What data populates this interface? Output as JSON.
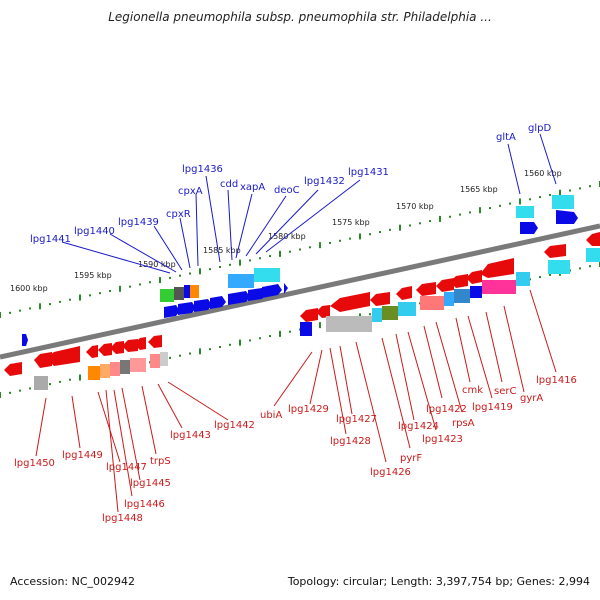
{
  "header": {
    "title": "Legionella pneumophila subsp. pneumophila str. Philadelphia ..."
  },
  "footer": {
    "accession": "Accession: NC_002942",
    "summary": "Topology: circular; Length: 3,397,754 bp; Genes: 2,994"
  },
  "colors": {
    "backbone": "#808080",
    "forward_gene": "#0a0ae6",
    "reverse_gene": "#e60a0a",
    "label_forward": "#1a1acc",
    "label_reverse": "#cc1a1a",
    "tick": "#2a8a2a"
  },
  "scale_labels": [
    "1600 kbp",
    "1595 kbp",
    "1590 kbp",
    "1585 kbp",
    "1580 kbp",
    "1575 kbp",
    "1570 kbp",
    "1565 kbp",
    "1560 kbp"
  ],
  "forward_labels": [
    "lpg1441",
    "lpg1440",
    "lpg1439",
    "cpxR",
    "cpxA",
    "lpg1436",
    "cdd",
    "xapA",
    "deoC",
    "lpg1432",
    "lpg1431",
    "gltA",
    "glpD"
  ],
  "reverse_labels": [
    "lpg1450",
    "lpg1449",
    "lpg1447",
    "lpg1448",
    "lpg1446",
    "lpg1445",
    "trpS",
    "lpg1443",
    "lpg1442",
    "ubiA",
    "lpg1429",
    "lpg1428",
    "lpg1427",
    "lpg1426",
    "pyrF",
    "lpg1424",
    "lpg1423",
    "lpg1422",
    "rpsA",
    "cmk",
    "lpg1419",
    "serC",
    "gyrA",
    "lpg1416"
  ]
}
